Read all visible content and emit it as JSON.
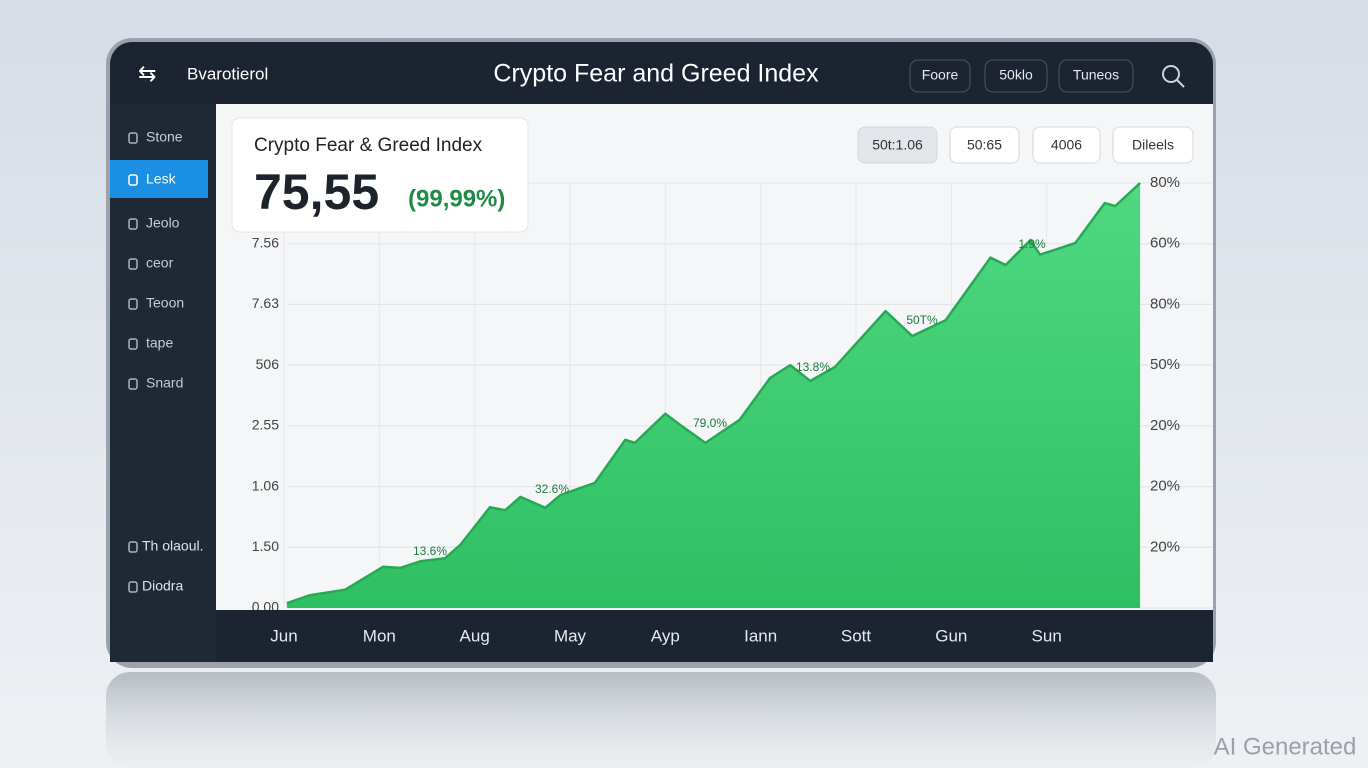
{
  "header": {
    "logo": "Bvarotierol",
    "title": "Crypto Fear and Greed Index",
    "buttons": [
      "Foore",
      "50klo",
      "Tuneos"
    ]
  },
  "sidebar": {
    "items": [
      "Stone",
      "Lesk",
      "Jeolo",
      "ceor",
      "Teoon",
      "tape",
      "Snard"
    ],
    "active": 1,
    "bottom": [
      "Th olaoul.",
      "Diodra"
    ]
  },
  "card": {
    "title": "Crypto Fear & Greed Index",
    "value": "75,55",
    "change": "(99,99%)"
  },
  "toolbar": [
    "50t:1.06",
    "50:65",
    "4006",
    "Dileels"
  ],
  "watermark": "AI Generated",
  "chart_data": {
    "type": "area",
    "color": "#3ecf74",
    "x": [
      0.03,
      0.27,
      0.64,
      1.04,
      1.22,
      1.43,
      1.69,
      1.85,
      2.16,
      2.32,
      2.48,
      2.74,
      2.9,
      3.26,
      3.58,
      3.68,
      4.0,
      4.16,
      4.42,
      4.78,
      5.1,
      5.31,
      5.52,
      5.78,
      6.31,
      6.59,
      6.94,
      7.41,
      7.57,
      7.83,
      7.93,
      8.3,
      8.61,
      8.72,
      8.98
    ],
    "values": [
      0.08,
      0.21,
      0.3,
      0.68,
      0.66,
      0.77,
      0.82,
      1.04,
      1.66,
      1.61,
      1.83,
      1.65,
      1.86,
      2.06,
      2.77,
      2.72,
      3.2,
      3.01,
      2.72,
      3.1,
      3.79,
      4.0,
      3.74,
      3.97,
      4.89,
      4.48,
      4.74,
      5.77,
      5.65,
      6.06,
      5.82,
      6.01,
      6.67,
      6.62,
      7.0
    ],
    "xlim": [
      0,
      9
    ],
    "xticks": [
      {
        "value": 0,
        "label": "Jun"
      },
      {
        "value": 1,
        "label": "Mon"
      },
      {
        "value": 2,
        "label": "Aug"
      },
      {
        "value": 3,
        "label": "May"
      },
      {
        "value": 4,
        "label": "Ayp"
      },
      {
        "value": 5,
        "label": "Iann"
      },
      {
        "value": 6,
        "label": "Sott"
      },
      {
        "value": 7,
        "label": "Gun"
      },
      {
        "value": 8,
        "label": "Sun"
      }
    ],
    "ylim": [
      0,
      7
    ],
    "yticks": [
      {
        "value": 0,
        "label": "0.00"
      },
      {
        "value": 1,
        "label": "1.50"
      },
      {
        "value": 2,
        "label": "1.06"
      },
      {
        "value": 3,
        "label": "2.55"
      },
      {
        "value": 4,
        "label": "506"
      },
      {
        "value": 5,
        "label": "7.63"
      },
      {
        "value": 6,
        "label": "7.56"
      }
    ],
    "y2lim": [
      0,
      7
    ],
    "y2ticks": [
      {
        "value": 1,
        "label": "20%"
      },
      {
        "value": 2,
        "label": "20%"
      },
      {
        "value": 3,
        "label": "20%"
      },
      {
        "value": 4,
        "label": "50%"
      },
      {
        "value": 5,
        "label": "80%"
      },
      {
        "value": 6,
        "label": "60%"
      },
      {
        "value": 7,
        "label": "80%"
      }
    ],
    "annotations": [
      "13.6%",
      "32.6%",
      "79,0%",
      "13.8%",
      "50T%",
      "1.9%"
    ],
    "grid": true
  }
}
